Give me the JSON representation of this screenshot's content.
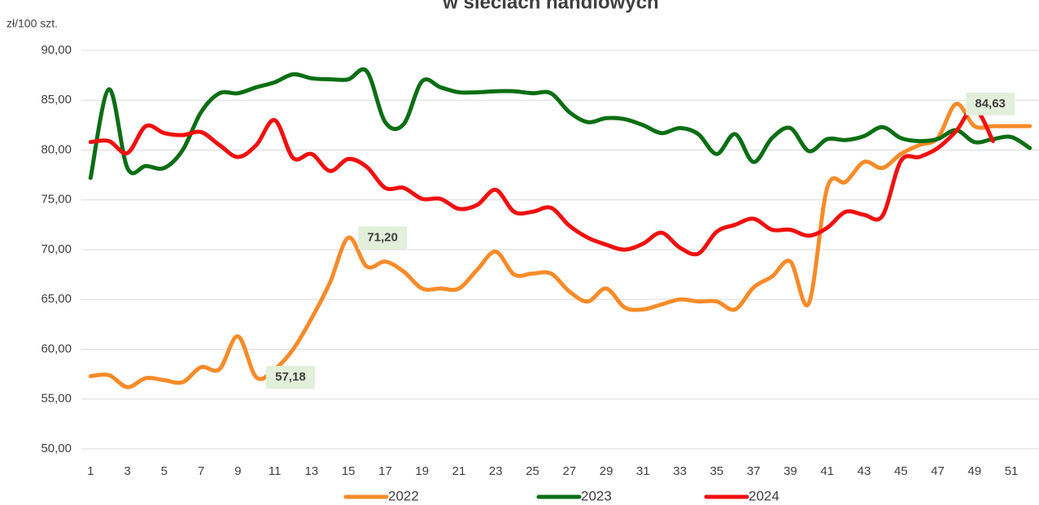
{
  "chart_data": {
    "type": "line",
    "title": "w sieciach handlowych",
    "y_label": "zł/100 szt.",
    "categories": [
      1,
      null,
      3,
      null,
      5,
      null,
      7,
      null,
      9,
      null,
      11,
      null,
      13,
      null,
      15,
      null,
      17,
      null,
      19,
      null,
      21,
      null,
      23,
      null,
      25,
      null,
      27,
      null,
      29,
      null,
      31,
      null,
      33,
      null,
      35,
      null,
      37,
      null,
      39,
      null,
      41,
      null,
      43,
      null,
      45,
      null,
      47,
      null,
      49,
      null,
      51,
      null
    ],
    "series": [
      {
        "name": "2022",
        "color": "#f68b2a",
        "values": [
          57.3,
          57.4,
          56.2,
          57.1,
          56.9,
          56.7,
          58.2,
          58.0,
          61.3,
          57.18,
          58.0,
          60.0,
          63.1,
          66.7,
          71.2,
          68.3,
          68.8,
          67.8,
          66.1,
          66.1,
          66.1,
          68.0,
          69.8,
          67.5,
          67.6,
          67.6,
          65.8,
          64.8,
          66.1,
          64.2,
          64.0,
          64.5,
          65.0,
          64.8,
          64.8,
          64.0,
          66.2,
          67.3,
          68.8,
          64.6,
          76.2,
          76.8,
          78.8,
          78.2,
          79.6,
          80.5,
          81.2,
          84.63,
          82.4,
          82.4,
          82.4,
          82.4
        ],
        "value_labels": [
          null,
          null,
          null,
          null,
          null,
          null,
          null,
          null,
          null,
          "57,18",
          null,
          null,
          null,
          null,
          "71,20",
          null,
          null,
          null,
          null,
          null,
          null,
          null,
          null,
          null,
          null,
          null,
          null,
          null,
          null,
          null,
          null,
          null,
          null,
          null,
          null,
          null,
          null,
          null,
          null,
          null,
          null,
          null,
          null,
          null,
          null,
          null,
          null,
          "84,63",
          null,
          null,
          null,
          null
        ]
      },
      {
        "name": "2023",
        "color": "#0b6e14",
        "values": [
          77.2,
          86.1,
          78.2,
          78.4,
          78.2,
          80.0,
          83.8,
          85.7,
          85.7,
          86.3,
          86.8,
          87.6,
          87.2,
          87.1,
          87.1,
          87.9,
          82.8,
          82.6,
          86.9,
          86.3,
          85.8,
          85.8,
          85.9,
          85.9,
          85.7,
          85.7,
          83.8,
          82.8,
          83.2,
          83.1,
          82.5,
          81.7,
          82.2,
          81.6,
          79.6,
          81.6,
          78.8,
          81.2,
          82.2,
          79.9,
          81.1,
          81.0,
          81.4,
          82.3,
          81.2,
          80.9,
          81.1,
          82.0,
          80.8,
          81.1,
          81.3,
          80.2
        ]
      },
      {
        "name": "2024",
        "color": "#f01010",
        "values": [
          80.8,
          80.9,
          79.7,
          82.4,
          81.7,
          81.5,
          81.8,
          80.5,
          79.3,
          80.5,
          83.0,
          79.2,
          79.6,
          77.9,
          79.1,
          78.3,
          76.2,
          76.2,
          75.1,
          75.1,
          74.1,
          74.5,
          76.0,
          73.8,
          73.8,
          74.2,
          72.4,
          71.2,
          70.5,
          70.0,
          70.6,
          71.7,
          70.2,
          69.6,
          71.8,
          72.5,
          73.1,
          72.0,
          72.0,
          71.4,
          72.2,
          73.8,
          73.5,
          73.4,
          78.9,
          79.3,
          80.2,
          81.9,
          84.2,
          80.9,
          null,
          null
        ]
      }
    ],
    "ylim": [
      50,
      90
    ],
    "yticks": [
      {
        "value": 50,
        "label": "50,00"
      },
      {
        "value": 55,
        "label": "55,00"
      },
      {
        "value": 60,
        "label": "60,00"
      },
      {
        "value": 65,
        "label": "65,00"
      },
      {
        "value": 70,
        "label": "70,00"
      },
      {
        "value": 75,
        "label": "75,00"
      },
      {
        "value": 80,
        "label": "80,00"
      },
      {
        "value": 85,
        "label": "85,00"
      },
      {
        "value": 90,
        "label": "90,00"
      }
    ],
    "grid": true,
    "legend": "bottom"
  }
}
